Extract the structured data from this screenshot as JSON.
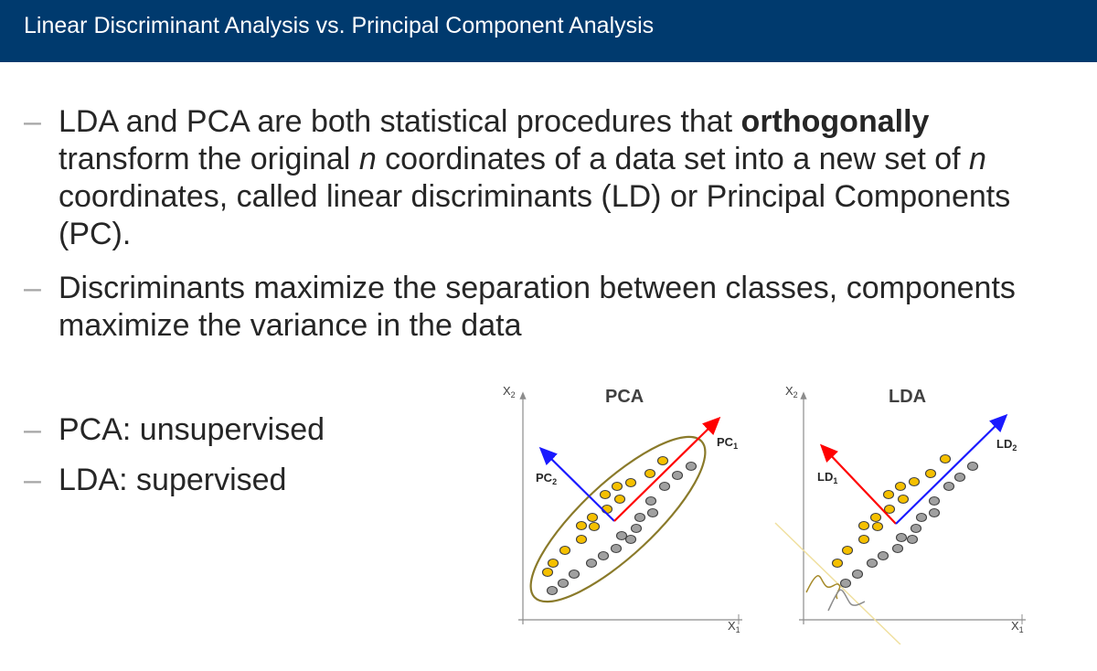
{
  "header": {
    "title": "Linear Discriminant Analysis vs. Principal Component Analysis"
  },
  "bullets": {
    "b1": {
      "line1_pre": "LDA and PCA are both statistical procedures that ",
      "line1_bold": "orthogonally",
      "line2_pre": "transform the original ",
      "line2_n": "n",
      "line2_mid": " coordinates of a data set into a new set of ",
      "line2_n2": "n",
      "line3": "coordinates, called linear discriminants (LD) or Principal Components",
      "line4": "(PC)."
    },
    "b2": {
      "line1": "Discriminants maximize the separation between classes, components",
      "line2": "maximize the variance in the data"
    },
    "b3": "PCA: unsupervised",
    "b4": "LDA: supervised",
    "dash": "–"
  },
  "pca_diagram": {
    "title": "PCA",
    "x_axis": "X",
    "x_sub": "1",
    "y_axis": "X",
    "y_sub": "2",
    "pc1": "PC",
    "pc1_sub": "1",
    "pc2": "PC",
    "pc2_sub": "2"
  },
  "lda_diagram": {
    "title": "LDA",
    "x_axis": "X",
    "x_sub": "1",
    "y_axis": "X",
    "y_sub": "2",
    "ld1": "LD",
    "ld1_sub": "1",
    "ld2": "LD",
    "ld2_sub": "2"
  },
  "colors": {
    "header_bg": "#003a6e",
    "class_yellow": "#f5c000",
    "class_gray": "#a0a0a0",
    "axis_red": "#ff0000",
    "axis_blue": "#1a1aff",
    "ellipse": "#8a7a2a",
    "projection_line": "#f0e0a0"
  }
}
